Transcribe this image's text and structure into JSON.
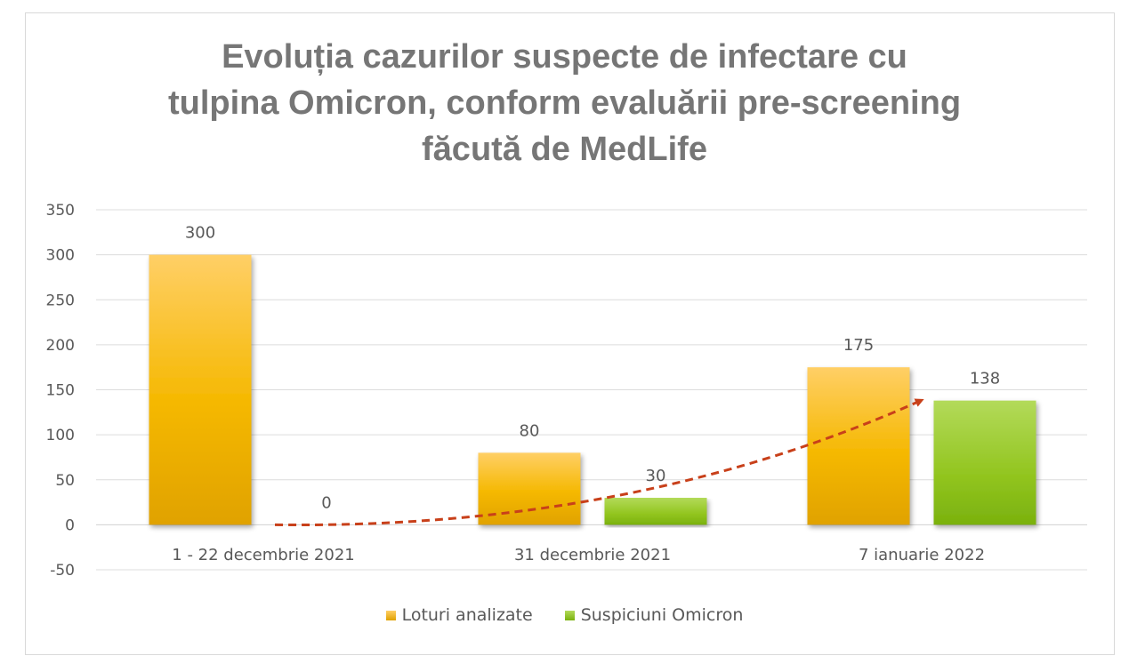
{
  "chart_data": {
    "type": "bar",
    "title": "Evoluția cazurilor suspecte de infectare cu\ntulpina Omicron, conform evaluării pre-screening\nfăcută de MedLife",
    "categories": [
      "1 - 22 decembrie 2021",
      "31 decembrie  2021",
      "7 ianuarie 2022"
    ],
    "series": [
      {
        "name": "Loturi analizate",
        "values": [
          300,
          80,
          175
        ],
        "color": "#F5B800"
      },
      {
        "name": "Suspiciuni Omicron",
        "values": [
          0,
          30,
          138
        ],
        "color": "#8DC21F"
      }
    ],
    "ylim": [
      -50,
      350
    ],
    "yticks": [
      350,
      300,
      250,
      200,
      150,
      100,
      50,
      0,
      -50
    ],
    "grid": true,
    "legend_position": "bottom",
    "annotations": [
      {
        "type": "trend-arrow",
        "color": "#C8401A",
        "style": "dashed",
        "follows_series": "Suspiciuni Omicron"
      }
    ]
  }
}
